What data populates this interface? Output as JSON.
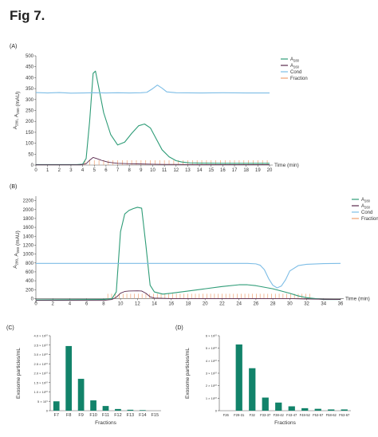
{
  "figure_title": "Fig 7.",
  "colors": {
    "a280": "#2e9c77",
    "a260": "#5a2a4e",
    "cond": "#7dbde6",
    "fraction": "#f0a070",
    "bar": "#12836a"
  },
  "chart_data": [
    {
      "panel": "(A)",
      "type": "line",
      "ylabel": "A280, A260 (mAU)",
      "xlabel": "Time (min)",
      "xlim": [
        0,
        20
      ],
      "ylim": [
        0,
        500
      ],
      "xticks": [
        "0",
        "1",
        "2",
        "3",
        "4",
        "5",
        "6",
        "7",
        "8",
        "9",
        "10",
        "11",
        "12",
        "13",
        "14",
        "15",
        "16",
        "17",
        "18",
        "19",
        "20"
      ],
      "yticks": [
        "0",
        "50",
        "100",
        "150",
        "200",
        "250",
        "300",
        "350",
        "400",
        "450",
        "500"
      ],
      "legend": [
        "A280",
        "A260",
        "Cond",
        "Fraction"
      ],
      "legend_position": "right",
      "series": [
        {
          "name": "A280",
          "x": [
            0,
            3.5,
            4.0,
            4.3,
            4.6,
            4.9,
            5.1,
            5.4,
            5.8,
            6.4,
            7.0,
            7.6,
            8.2,
            8.8,
            9.3,
            9.8,
            10.3,
            10.8,
            11.4,
            12.0,
            12.5,
            13.2,
            14,
            16,
            18,
            20
          ],
          "y": [
            2,
            2,
            4,
            30,
            200,
            420,
            430,
            350,
            240,
            140,
            92,
            105,
            145,
            180,
            188,
            170,
            120,
            70,
            38,
            20,
            14,
            10,
            9,
            8,
            8,
            8
          ]
        },
        {
          "name": "A260",
          "x": [
            0,
            3.8,
            4.3,
            4.6,
            4.9,
            5.2,
            5.6,
            6.2,
            7.0,
            8.0,
            9.0,
            10.0,
            11.0,
            12.0,
            14,
            20
          ],
          "y": [
            1,
            1,
            6,
            22,
            35,
            30,
            22,
            13,
            8,
            6,
            5,
            4,
            3,
            3,
            2,
            2
          ]
        },
        {
          "name": "Cond",
          "x": [
            0,
            1,
            2,
            3,
            4,
            5,
            6,
            7,
            8,
            9,
            9.5,
            10.0,
            10.4,
            10.8,
            11.2,
            12,
            14,
            16,
            18,
            20
          ],
          "y": [
            332,
            330,
            332,
            329,
            330,
            331,
            330,
            331,
            330,
            331,
            333,
            350,
            366,
            352,
            335,
            331,
            330,
            331,
            330,
            330
          ]
        }
      ],
      "fraction_marks": {
        "start": 4.2,
        "end": 20,
        "step": 0.4
      }
    },
    {
      "panel": "(B)",
      "type": "line",
      "ylabel": "A280, A260 (mAU)",
      "xlabel": "Time (min)",
      "xlim": [
        0,
        36
      ],
      "ylim": [
        -100,
        2300
      ],
      "xticks": [
        "0",
        "2",
        "4",
        "6",
        "8",
        "10",
        "12",
        "14",
        "16",
        "18",
        "20",
        "22",
        "24",
        "26",
        "28",
        "30",
        "32",
        "34",
        "36"
      ],
      "yticks": [
        "0",
        "200",
        "400",
        "600",
        "800",
        "1000",
        "1200",
        "1400",
        "1600",
        "1800",
        "2000",
        "2200"
      ],
      "legend": [
        "A280",
        "A260",
        "Cond",
        "Fraction"
      ],
      "legend_position": "right",
      "series": [
        {
          "name": "A280",
          "x": [
            0,
            8,
            9,
            9.5,
            10,
            10.5,
            11,
            11.5,
            12,
            12.5,
            13,
            13.5,
            14,
            15,
            16,
            18,
            20,
            22,
            24,
            25,
            26,
            28,
            30,
            31,
            32,
            34,
            36
          ],
          "y": [
            -30,
            -20,
            0,
            150,
            1500,
            1900,
            1980,
            2020,
            2050,
            2030,
            1200,
            300,
            150,
            100,
            120,
            170,
            220,
            270,
            310,
            310,
            290,
            220,
            120,
            60,
            20,
            -20,
            -20
          ]
        },
        {
          "name": "A260",
          "x": [
            0,
            8,
            9,
            9.5,
            10,
            10.5,
            11,
            12,
            12.5,
            13,
            13.5,
            14,
            16,
            20,
            25,
            30,
            32,
            36
          ],
          "y": [
            -40,
            -40,
            -20,
            30,
            120,
            160,
            170,
            175,
            170,
            120,
            40,
            10,
            0,
            0,
            0,
            0,
            -10,
            -20
          ]
        },
        {
          "name": "Cond",
          "x": [
            0,
            2,
            4,
            6,
            8,
            10,
            12,
            14,
            16,
            18,
            20,
            22,
            24,
            25,
            26,
            26.5,
            27,
            27.5,
            28,
            28.5,
            29,
            29.5,
            30,
            31,
            32,
            34,
            36
          ],
          "y": [
            790,
            790,
            790,
            790,
            790,
            790,
            790,
            790,
            790,
            790,
            790,
            790,
            790,
            790,
            780,
            750,
            650,
            450,
            300,
            240,
            280,
            420,
            620,
            740,
            770,
            785,
            790
          ]
        }
      ],
      "fraction_marks": {
        "start": 8.5,
        "end": 32.5,
        "step": 0.45
      }
    },
    {
      "panel": "(C)",
      "type": "bar",
      "ylabel": "Exosome particles/mL",
      "xlabel": "Fractions",
      "ylim": [
        0,
        40000000000.0
      ],
      "yticks": [
        "0",
        "5 × 10⁹",
        "1.0 × 10¹⁰",
        "1.5 × 10¹⁰",
        "2.0 × 10¹⁰",
        "2.5 × 10¹⁰",
        "3.0 × 10¹⁰",
        "3.5 × 10¹⁰",
        "4.0 × 10¹⁰"
      ],
      "categories": [
        "F7",
        "F8",
        "F9",
        "F10",
        "F11",
        "F12",
        "F13",
        "F14",
        "F15"
      ],
      "values": [
        5000000000.0,
        34500000000.0,
        17000000000.0,
        5500000000.0,
        2500000000.0,
        900000000.0,
        500000000.0,
        300000000.0,
        0
      ]
    },
    {
      "panel": "(D)",
      "type": "bar",
      "ylabel": "Exosome particles/mL",
      "xlabel": "Fractions",
      "ylim": [
        0,
        60000000000.0
      ],
      "yticks": [
        "0",
        "1 × 10¹⁰",
        "2 × 10¹⁰",
        "3 × 10¹⁰",
        "4 × 10¹⁰",
        "5 × 10¹⁰",
        "6 × 10¹⁰"
      ],
      "categories": [
        "F26",
        "F29-31",
        "F32",
        "F33-37",
        "F38-42",
        "F43-47",
        "F48-52",
        "F53-57",
        "F58-62",
        "F63-67"
      ],
      "values": [
        0,
        53000000000.0,
        34000000000.0,
        10500000000.0,
        6500000000.0,
        3500000000.0,
        2000000000.0,
        1500000000.0,
        1000000000.0,
        1000000000.0
      ]
    }
  ]
}
